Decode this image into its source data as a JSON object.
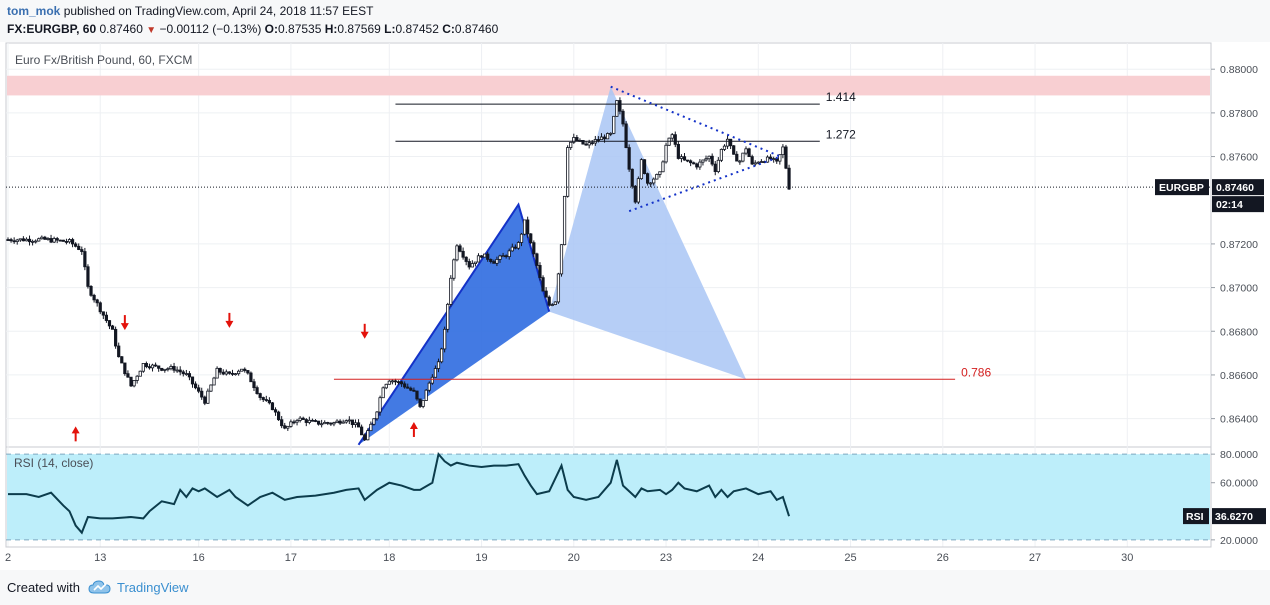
{
  "header": {
    "author": "tom_mok",
    "published_text": "published on TradingView.com, April 24, 2018 11:57 EEST",
    "symbol_interval": "FX:EURGBP, 60",
    "last_price": "0.87460",
    "down_glyph": "▼",
    "change": "−0.00112 (−0.13%)",
    "o_label": "O:",
    "o_value": "0.87535",
    "h_label": "H:",
    "h_value": "0.87569",
    "l_label": "L:",
    "l_value": "0.87452",
    "c_label": "C:",
    "c_value": "0.87460"
  },
  "footer": {
    "created_with": "Created with",
    "brand": "TradingView",
    "logo_icon": "cloud-logo-icon"
  },
  "colors": {
    "resistance_zone": "#f8cfd2",
    "pattern_dark": "#2f6be0",
    "pattern_light": "#a9c6f5",
    "rsi_band": "#bdeefa",
    "arrow": "#e3120b",
    "fib_line": "#131722",
    "fib_786": "#d42020",
    "price_tag": "#131722"
  },
  "chart_data": [
    {
      "type": "candlestick",
      "title": "Euro Fx/British Pound, 60, FXCM",
      "ylim": [
        0.8627,
        0.8812
      ],
      "y_ticks": [
        "0.88000",
        "0.87800",
        "0.87600",
        "0.87200",
        "0.87000",
        "0.86800",
        "0.86600",
        "0.86400"
      ],
      "x_ticks": [
        "2",
        "13",
        "16",
        "17",
        "18",
        "19",
        "20",
        "23",
        "24",
        "25",
        "26",
        "27",
        "30"
      ],
      "current_price_label": "EURGBP",
      "current_price": "0.87460",
      "countdown_tag": "02:14",
      "current_value": 0.8746,
      "resistance_zone": [
        0.8788,
        0.8797
      ],
      "price_path": [
        [
          0,
          0.8722
        ],
        [
          6,
          0.8722
        ],
        [
          10,
          0.8721
        ],
        [
          12,
          0.8717
        ],
        [
          13,
          0.87
        ],
        [
          15,
          0.869
        ],
        [
          17,
          0.868
        ],
        [
          18,
          0.8668
        ],
        [
          20,
          0.8655
        ],
        [
          22,
          0.8665
        ],
        [
          25,
          0.8663
        ],
        [
          27,
          0.8663
        ],
        [
          29,
          0.866
        ],
        [
          31,
          0.8652
        ],
        [
          32,
          0.8648
        ],
        [
          34,
          0.8662
        ],
        [
          36,
          0.866
        ],
        [
          38,
          0.8663
        ],
        [
          39,
          0.866
        ],
        [
          41,
          0.865
        ],
        [
          43,
          0.8645
        ],
        [
          45,
          0.8635
        ],
        [
          47,
          0.864
        ],
        [
          50,
          0.8638
        ],
        [
          53,
          0.8638
        ],
        [
          55,
          0.864
        ],
        [
          57,
          0.8636
        ],
        [
          58,
          0.863
        ],
        [
          60,
          0.8644
        ],
        [
          61,
          0.8655
        ],
        [
          62,
          0.8658
        ],
        [
          64,
          0.8656
        ],
        [
          66,
          0.8652
        ],
        [
          67,
          0.8645
        ],
        [
          69,
          0.866
        ],
        [
          70,
          0.8665
        ],
        [
          71,
          0.868
        ],
        [
          72,
          0.8705
        ],
        [
          73,
          0.872
        ],
        [
          75,
          0.871
        ],
        [
          77,
          0.8715
        ],
        [
          79,
          0.8712
        ],
        [
          81,
          0.8715
        ],
        [
          83,
          0.872
        ],
        [
          84,
          0.873
        ],
        [
          85,
          0.872
        ],
        [
          86,
          0.871
        ],
        [
          87,
          0.8698
        ],
        [
          88,
          0.8692
        ],
        [
          89,
          0.8694
        ],
        [
          90,
          0.872
        ],
        [
          91,
          0.8765
        ],
        [
          92,
          0.8768
        ],
        [
          94,
          0.8765
        ],
        [
          96,
          0.8768
        ],
        [
          98,
          0.877
        ],
        [
          99,
          0.8785
        ],
        [
          100,
          0.8775
        ],
        [
          101,
          0.8755
        ],
        [
          102,
          0.874
        ],
        [
          103,
          0.8758
        ],
        [
          104,
          0.8748
        ],
        [
          106,
          0.8752
        ],
        [
          107,
          0.8765
        ],
        [
          108,
          0.877
        ],
        [
          109,
          0.876
        ],
        [
          110,
          0.8758
        ],
        [
          112,
          0.8756
        ],
        [
          114,
          0.876
        ],
        [
          115,
          0.8754
        ],
        [
          116,
          0.8763
        ],
        [
          117,
          0.8768
        ],
        [
          118,
          0.876
        ],
        [
          119,
          0.8758
        ],
        [
          120,
          0.8764
        ],
        [
          121,
          0.8756
        ],
        [
          122,
          0.8758
        ],
        [
          124,
          0.8759
        ],
        [
          125,
          0.8757
        ],
        [
          126,
          0.8764
        ],
        [
          127,
          0.8746
        ]
      ],
      "fib_levels": [
        {
          "label": "1.414",
          "value": 0.8784
        },
        {
          "label": "1.272",
          "value": 0.8767
        },
        {
          "label": "0.786",
          "value": 0.8658
        }
      ],
      "harmonic_pattern": {
        "X": [
          57,
          0.8628
        ],
        "A": [
          83,
          0.8738
        ],
        "B": [
          88,
          0.8689
        ],
        "C": [
          98,
          0.8792
        ],
        "D": [
          120,
          0.8658
        ]
      },
      "triangle": {
        "upper": [
          [
            98,
            0.8792
          ],
          [
            124,
            0.876
          ]
        ],
        "lower": [
          [
            101,
            0.8735
          ],
          [
            124,
            0.876
          ]
        ]
      },
      "signal_arrows": [
        {
          "dir": "down",
          "x": 19,
          "value": 0.8681
        },
        {
          "dir": "down",
          "x": 36,
          "value": 0.8682
        },
        {
          "dir": "down",
          "x": 58,
          "value": 0.8677
        },
        {
          "dir": "up",
          "x": 11,
          "value": 0.8636
        },
        {
          "dir": "up",
          "x": 66,
          "value": 0.8638
        }
      ]
    },
    {
      "type": "line",
      "title": "RSI (14, close)",
      "ylim": [
        15,
        85
      ],
      "y_ticks": [
        "80.0000",
        "60.0000",
        "20.0000"
      ],
      "band": [
        20,
        80
      ],
      "current_label": "RSI",
      "current_value": "36.6270",
      "current_numeric": 36.627,
      "x": [
        0,
        3,
        5,
        7,
        9,
        10,
        11,
        12,
        13,
        15,
        17,
        20,
        22,
        23,
        25,
        27,
        28,
        29,
        30,
        31,
        32,
        34,
        36,
        37,
        39,
        41,
        43,
        45,
        47,
        50,
        53,
        55,
        57,
        58,
        60,
        62,
        64,
        66,
        67,
        69,
        70,
        71,
        72,
        73,
        75,
        77,
        79,
        81,
        83,
        84,
        85,
        86,
        88,
        90,
        91,
        92,
        94,
        96,
        98,
        99,
        100,
        101,
        102,
        103,
        104,
        106,
        107,
        108,
        109,
        110,
        112,
        114,
        115,
        116,
        117,
        118,
        120,
        122,
        124,
        125,
        126,
        127
      ],
      "values": [
        52,
        52,
        50,
        53,
        44,
        40,
        30,
        25,
        36,
        35,
        35,
        36,
        35,
        40,
        47,
        45,
        55,
        50,
        56,
        54,
        56,
        50,
        55,
        50,
        44,
        50,
        53,
        48,
        50,
        51,
        53,
        55,
        56,
        48,
        55,
        60,
        58,
        55,
        55,
        60,
        80,
        75,
        72,
        74,
        72,
        71,
        72,
        72,
        73,
        65,
        58,
        52,
        54,
        72,
        55,
        50,
        48,
        50,
        60,
        76,
        58,
        54,
        50,
        56,
        54,
        55,
        52,
        55,
        60,
        56,
        54,
        58,
        50,
        55,
        50,
        54,
        56,
        52,
        54,
        48,
        50,
        36.6
      ]
    }
  ]
}
